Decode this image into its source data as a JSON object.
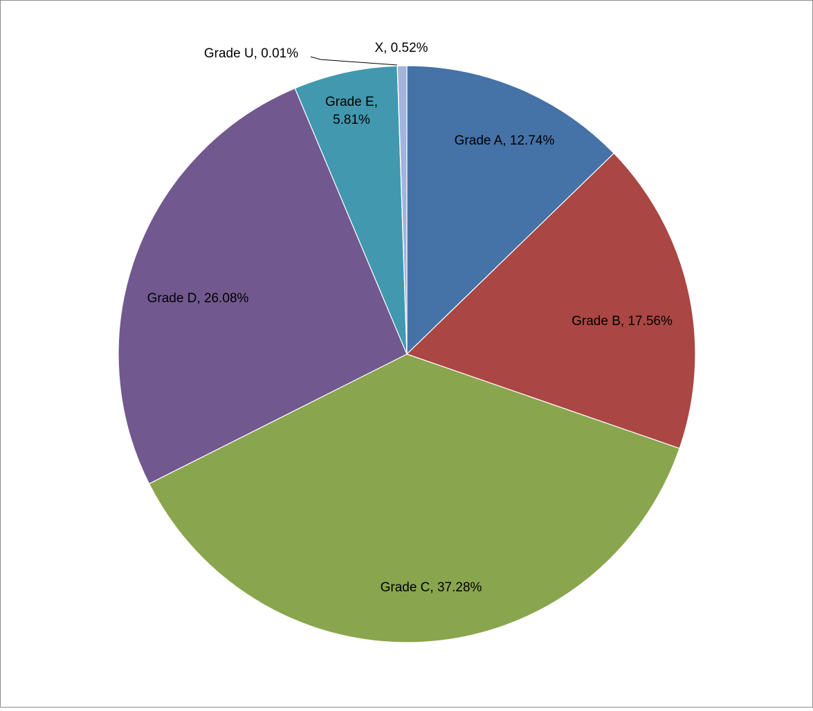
{
  "chart_data": {
    "type": "pie",
    "title": "",
    "slices": [
      {
        "label": "Grade A",
        "value": 12.74,
        "display": "Grade A, 12.74%",
        "color": "#4572A7"
      },
      {
        "label": "Grade B",
        "value": 17.56,
        "display": "Grade B, 17.56%",
        "color": "#AA4643"
      },
      {
        "label": "Grade C",
        "value": 37.28,
        "display": "Grade C, 37.28%",
        "color": "#89A54E"
      },
      {
        "label": "Grade D",
        "value": 26.08,
        "display": "Grade D, 26.08%",
        "color": "#71588F"
      },
      {
        "label": "Grade E",
        "value": 5.81,
        "display_lines": [
          "Grade E,",
          "5.81%"
        ],
        "color": "#4198AF"
      },
      {
        "label": "Grade U",
        "value": 0.01,
        "display": "Grade U, 0.01%",
        "color": "#DB843D"
      },
      {
        "label": "X",
        "value": 0.52,
        "display": "X, 0.52%",
        "color": "#A2B4DC"
      }
    ],
    "start_angle": "12 o'clock",
    "direction": "clockwise",
    "legend": "none"
  }
}
